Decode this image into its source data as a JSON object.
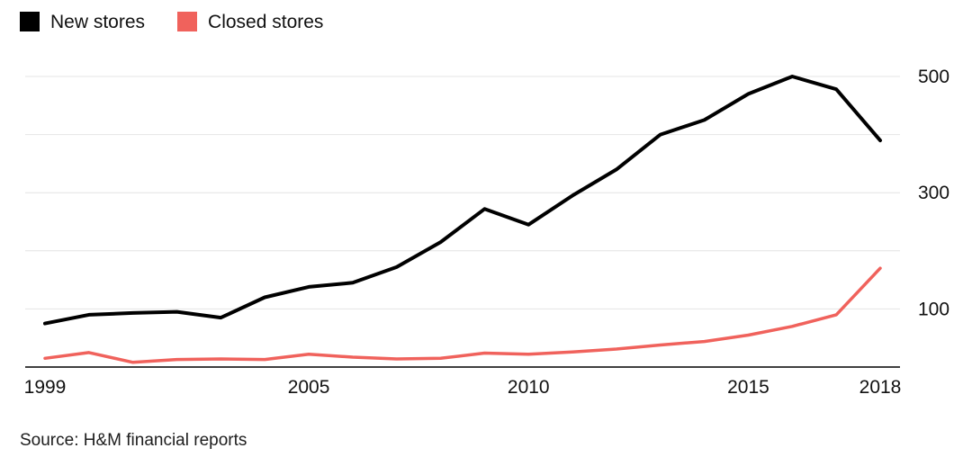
{
  "legend": {
    "items": [
      {
        "label": "New stores",
        "color": "#000000"
      },
      {
        "label": "Closed stores",
        "color": "#f0625c"
      }
    ]
  },
  "source": "Source: H&M financial reports",
  "chart_data": {
    "type": "line",
    "x": [
      1999,
      2000,
      2001,
      2002,
      2003,
      2004,
      2005,
      2006,
      2007,
      2008,
      2009,
      2010,
      2011,
      2012,
      2013,
      2014,
      2015,
      2016,
      2017,
      2018
    ],
    "series": [
      {
        "name": "New stores",
        "color": "#000000",
        "stroke_width": 4,
        "values": [
          75,
          90,
          93,
          95,
          85,
          120,
          138,
          145,
          172,
          215,
          272,
          245,
          295,
          340,
          400,
          425,
          470,
          500,
          478,
          390
        ]
      },
      {
        "name": "Closed stores",
        "color": "#f0625c",
        "stroke_width": 3.5,
        "values": [
          15,
          25,
          8,
          13,
          14,
          13,
          22,
          17,
          14,
          15,
          24,
          22,
          26,
          31,
          38,
          44,
          55,
          70,
          90,
          170
        ]
      }
    ],
    "xticks": [
      1999,
      2005,
      2010,
      2015,
      2018
    ],
    "yticks": [
      100,
      300,
      500
    ],
    "gridlines": [
      100,
      200,
      300,
      400,
      500
    ],
    "ylim": [
      0,
      520
    ],
    "grid_color": "#e4e4e4",
    "axis_color": "#000000",
    "tick_color": "#111111",
    "legend_position": "top-left",
    "y_axis_side": "right"
  }
}
